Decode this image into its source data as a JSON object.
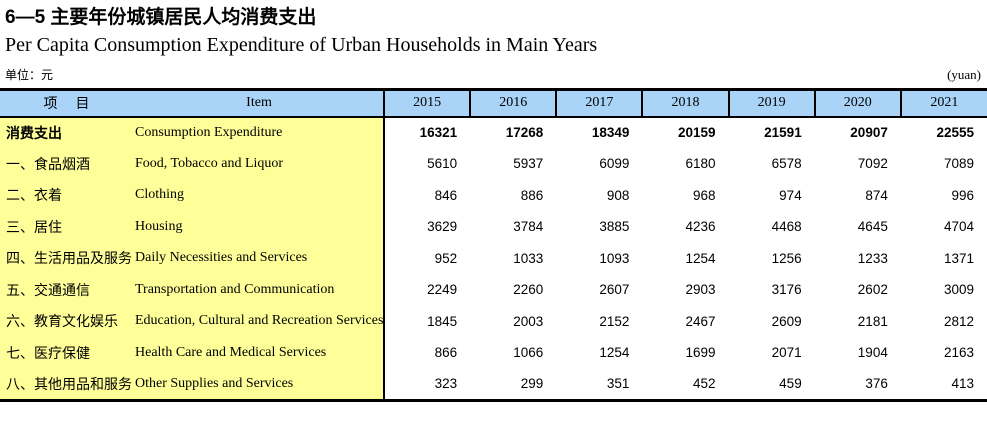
{
  "page": {
    "title_cn": "6—5  主要年份城镇居民人均消费支出",
    "title_en": "Per Capita Consumption Expenditure of Urban Households in Main Years",
    "unit_cn": "单位：元",
    "unit_en": "(yuan)"
  },
  "colors": {
    "header_bg": "#A9D3F7",
    "stub_bg": "#FFFF99"
  },
  "table": {
    "header": {
      "stub_cn": "项　目",
      "stub_en": "Item",
      "years": [
        "2015",
        "2016",
        "2017",
        "2018",
        "2019",
        "2020",
        "2021"
      ]
    },
    "rows": [
      {
        "cn": "消费支出",
        "en": "Consumption Expenditure",
        "bold": true,
        "values": [
          "16321",
          "17268",
          "18349",
          "20159",
          "21591",
          "20907",
          "22555"
        ]
      },
      {
        "cn": "一、食品烟酒",
        "en": "Food, Tobacco and Liquor",
        "bold": false,
        "values": [
          "5610",
          "5937",
          "6099",
          "6180",
          "6578",
          "7092",
          "7089"
        ]
      },
      {
        "cn": "二、衣着",
        "en": "Clothing",
        "bold": false,
        "values": [
          "846",
          "886",
          "908",
          "968",
          "974",
          "874",
          "996"
        ]
      },
      {
        "cn": "三、居住",
        "en": "Housing",
        "bold": false,
        "values": [
          "3629",
          "3784",
          "3885",
          "4236",
          "4468",
          "4645",
          "4704"
        ]
      },
      {
        "cn": "四、生活用品及服务",
        "en": "Daily Necessities and Services",
        "bold": false,
        "values": [
          "952",
          "1033",
          "1093",
          "1254",
          "1256",
          "1233",
          "1371"
        ]
      },
      {
        "cn": "五、交通通信",
        "en": "Transportation and Communication",
        "bold": false,
        "values": [
          "2249",
          "2260",
          "2607",
          "2903",
          "3176",
          "2602",
          "3009"
        ]
      },
      {
        "cn": "六、教育文化娱乐",
        "en": "Education, Cultural and Recreation Services",
        "bold": false,
        "values": [
          "1845",
          "2003",
          "2152",
          "2467",
          "2609",
          "2181",
          "2812"
        ]
      },
      {
        "cn": "七、医疗保健",
        "en": "Health Care and Medical Services",
        "bold": false,
        "values": [
          "866",
          "1066",
          "1254",
          "1699",
          "2071",
          "1904",
          "2163"
        ]
      },
      {
        "cn": "八、其他用品和服务",
        "en": "Other Supplies and Services",
        "bold": false,
        "values": [
          "323",
          "299",
          "351",
          "452",
          "459",
          "376",
          "413"
        ]
      }
    ]
  }
}
